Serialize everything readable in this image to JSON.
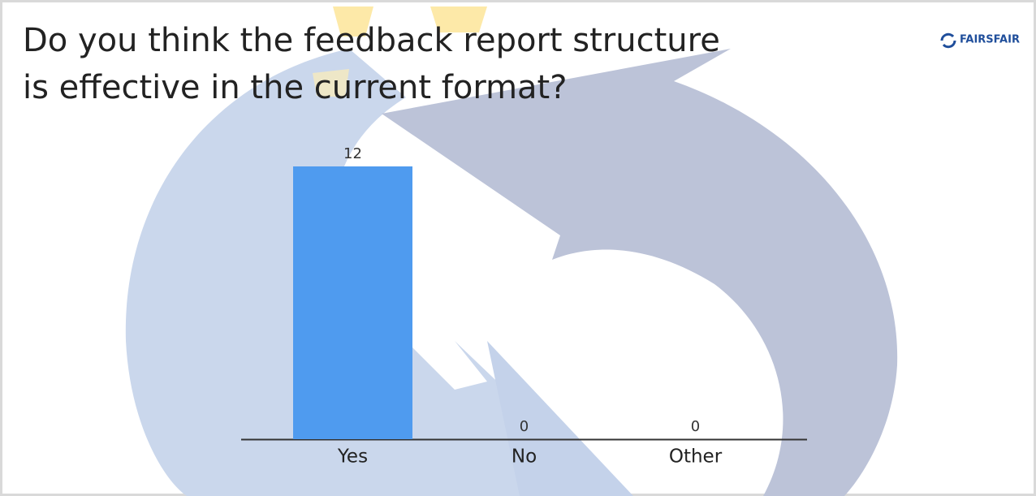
{
  "logo": "FAIRSFAIR",
  "chart_data": {
    "type": "bar",
    "title": "Do you think the feedback report structure is effective in the current format?",
    "categories": [
      "Yes",
      "No",
      "Other"
    ],
    "values": [
      12,
      0,
      0
    ],
    "color": "#4f9bef"
  }
}
